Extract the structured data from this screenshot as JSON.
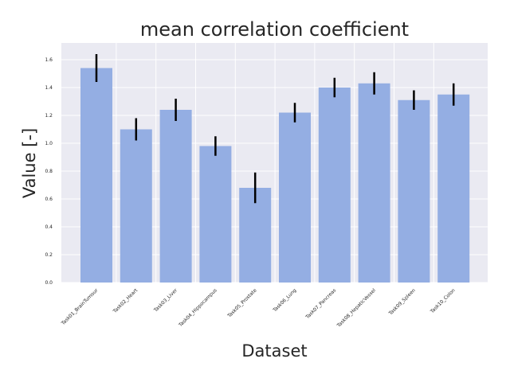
{
  "chart_data": {
    "type": "bar",
    "title": "mean correlation coefficient",
    "xlabel": "Dataset",
    "ylabel": "Value [-]",
    "categories": [
      "Task01_BrainTumour",
      "Task02_Heart",
      "Task03_Liver",
      "Task04_Hippocampus",
      "Task05_Prostate",
      "Task06_Lung",
      "Task07_Pancreas",
      "Task08_HepaticVessel",
      "Task09_Spleen",
      "Task10_Colon"
    ],
    "values": [
      1.54,
      1.1,
      1.24,
      0.98,
      0.68,
      1.22,
      1.4,
      1.43,
      1.31,
      1.35
    ],
    "error": [
      0.1,
      0.08,
      0.08,
      0.07,
      0.11,
      0.07,
      0.07,
      0.08,
      0.07,
      0.08
    ],
    "ylim": [
      0,
      1.72
    ],
    "yticks": [
      "0.0",
      "0.2",
      "0.4",
      "0.6",
      "0.8",
      "1.0",
      "1.2",
      "1.4",
      "1.6"
    ],
    "grid": true,
    "colors": {
      "bar": "#94aee3",
      "error": "#000000",
      "background": "#eaeaf2",
      "grid": "#ffffff"
    }
  }
}
